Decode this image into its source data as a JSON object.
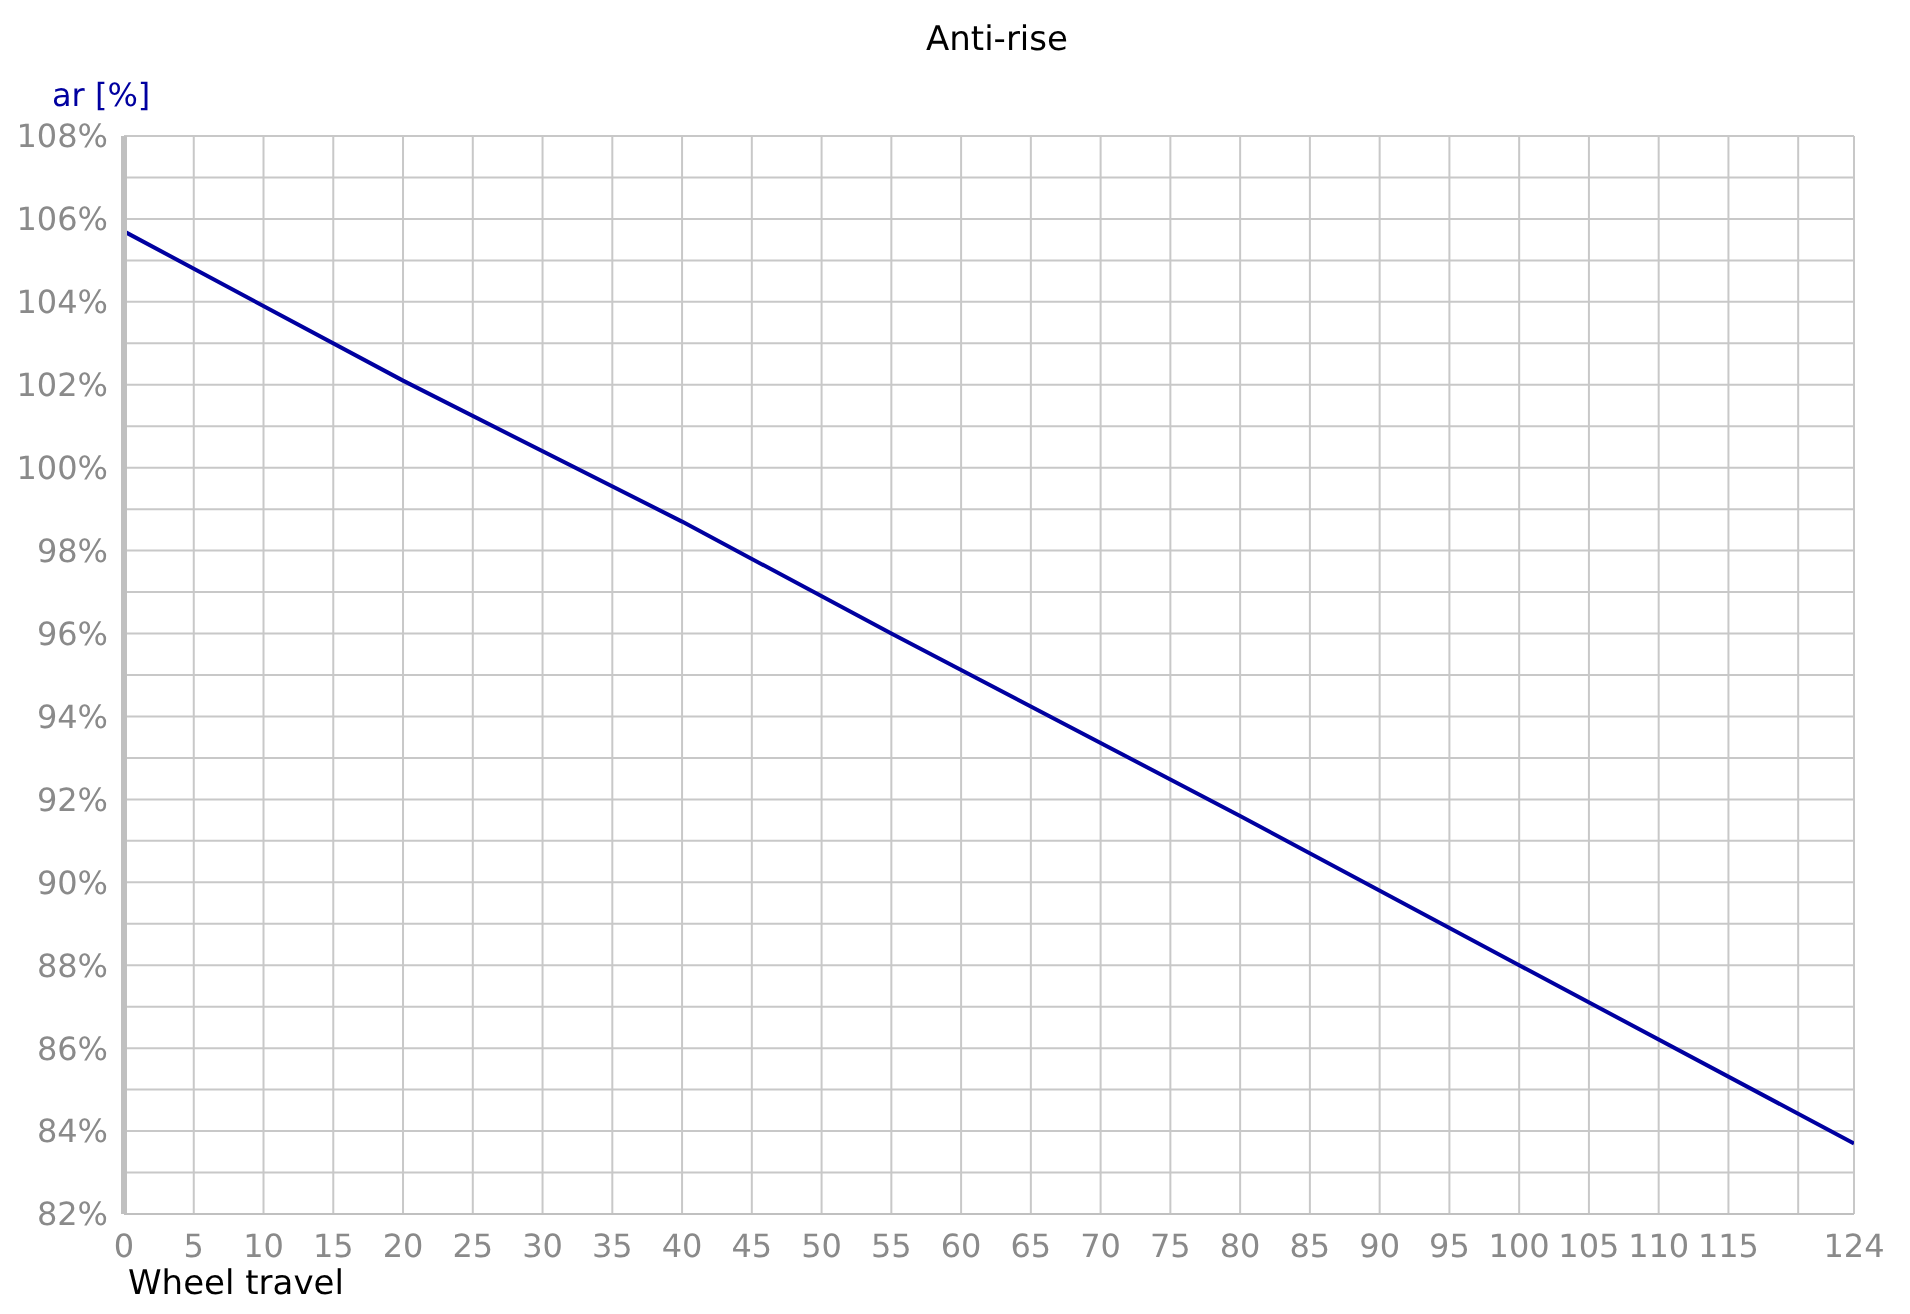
{
  "chart_data": {
    "type": "line",
    "title": "Anti-rise",
    "xlabel": "Wheel travel",
    "ylabel": "ar [%]",
    "series": [
      {
        "color": "#0000a0",
        "x": [
          0,
          20,
          40,
          55,
          80,
          100,
          124
        ],
        "values": [
          105.7,
          102.1,
          98.7,
          96.0,
          91.6,
          88.0,
          83.7
        ]
      }
    ],
    "xlim": [
      0,
      124
    ],
    "xticks": [
      0,
      5,
      10,
      15,
      20,
      25,
      30,
      35,
      40,
      45,
      50,
      55,
      60,
      65,
      70,
      75,
      80,
      85,
      90,
      95,
      100,
      105,
      110,
      115,
      {
        "value": 120,
        "label": null
      },
      124
    ],
    "ylim": [
      82,
      108
    ],
    "yticks": [
      {
        "value": 82,
        "label": "82%"
      },
      {
        "value": 83,
        "label": null
      },
      {
        "value": 84,
        "label": "84%"
      },
      {
        "value": 85,
        "label": null
      },
      {
        "value": 86,
        "label": "86%"
      },
      {
        "value": 87,
        "label": null
      },
      {
        "value": 88,
        "label": "88%"
      },
      {
        "value": 89,
        "label": null
      },
      {
        "value": 90,
        "label": "90%"
      },
      {
        "value": 91,
        "label": null
      },
      {
        "value": 92,
        "label": "92%"
      },
      {
        "value": 93,
        "label": null
      },
      {
        "value": 94,
        "label": "94%"
      },
      {
        "value": 95,
        "label": null
      },
      {
        "value": 96,
        "label": "96%"
      },
      {
        "value": 97,
        "label": null
      },
      {
        "value": 98,
        "label": "98%"
      },
      {
        "value": 99,
        "label": null
      },
      {
        "value": 100,
        "label": "100%"
      },
      {
        "value": 101,
        "label": null
      },
      {
        "value": 102,
        "label": "102%"
      },
      {
        "value": 103,
        "label": null
      },
      {
        "value": 104,
        "label": "104%"
      },
      {
        "value": 105,
        "label": null
      },
      {
        "value": 106,
        "label": "106%"
      },
      {
        "value": 107,
        "label": null
      },
      {
        "value": 108,
        "label": "108%"
      }
    ],
    "grid": true,
    "marker": "none",
    "line_style": "solid"
  }
}
